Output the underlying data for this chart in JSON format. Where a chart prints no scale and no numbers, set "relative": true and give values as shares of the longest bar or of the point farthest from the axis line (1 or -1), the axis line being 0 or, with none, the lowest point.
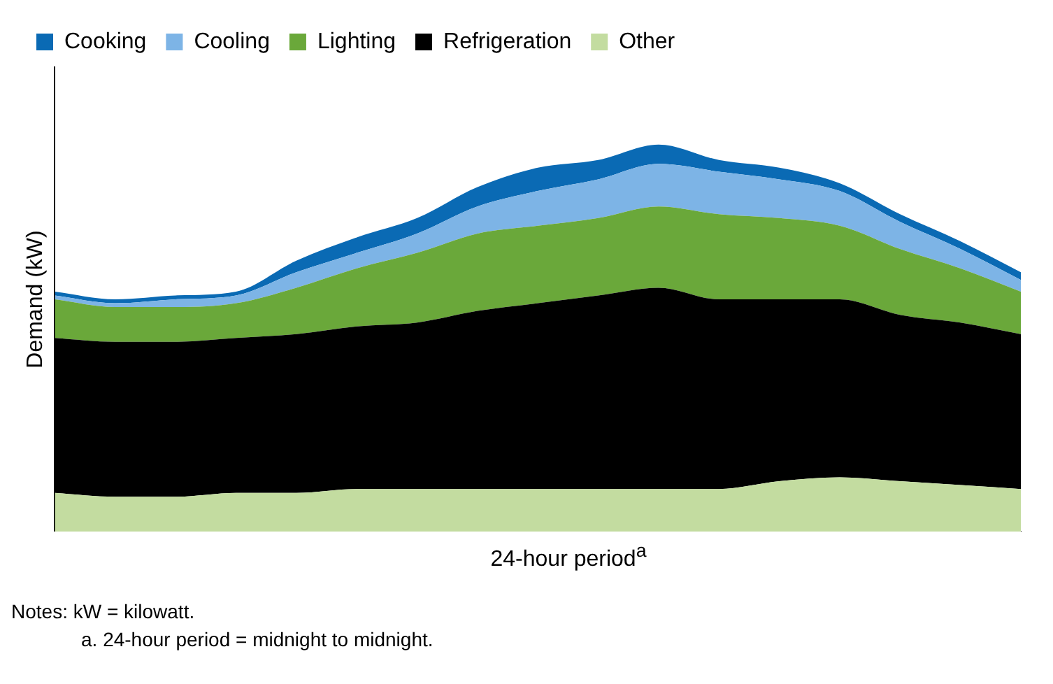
{
  "chart_data": {
    "type": "area",
    "ylabel": "Demand (kW)",
    "xlabel": "24-hour period$^{a}$",
    "relative": true,
    "stacked": true,
    "legend": "top",
    "grid": false,
    "categories": [
      null,
      null,
      null,
      null,
      null,
      null,
      null,
      null,
      null,
      null,
      null,
      null,
      null,
      null,
      null,
      null,
      null
    ],
    "series": [
      {
        "name": "Other",
        "color": "#c3dca0",
        "values": [
          0.1,
          0.09,
          0.09,
          0.1,
          0.1,
          0.11,
          0.11,
          0.11,
          0.11,
          0.11,
          0.11,
          0.11,
          0.13,
          0.14,
          0.13,
          0.12,
          0.11
        ]
      },
      {
        "name": "Refrigeration",
        "color": "#000000",
        "values": [
          0.4,
          0.4,
          0.4,
          0.4,
          0.41,
          0.42,
          0.43,
          0.46,
          0.48,
          0.5,
          0.52,
          0.49,
          0.47,
          0.46,
          0.43,
          0.42,
          0.4
        ]
      },
      {
        "name": "Lighting",
        "color": "#6aa83a",
        "values": [
          0.1,
          0.09,
          0.09,
          0.09,
          0.12,
          0.15,
          0.18,
          0.2,
          0.2,
          0.2,
          0.21,
          0.22,
          0.21,
          0.19,
          0.17,
          0.14,
          0.11
        ]
      },
      {
        "name": "Cooling",
        "color": "#7db4e6",
        "values": [
          0.01,
          0.01,
          0.02,
          0.02,
          0.04,
          0.04,
          0.05,
          0.07,
          0.09,
          0.1,
          0.11,
          0.11,
          0.1,
          0.09,
          0.07,
          0.05,
          0.03
        ]
      },
      {
        "name": "Cooking",
        "color": "#0a6ab4",
        "values": [
          0.01,
          0.01,
          0.01,
          0.01,
          0.03,
          0.04,
          0.04,
          0.05,
          0.06,
          0.05,
          0.05,
          0.03,
          0.03,
          0.02,
          0.02,
          0.02,
          0.02
        ]
      }
    ],
    "annotations": [
      "Notes: kW = kilowatt.",
      "a. 24-hour period = midnight to midnight."
    ]
  }
}
